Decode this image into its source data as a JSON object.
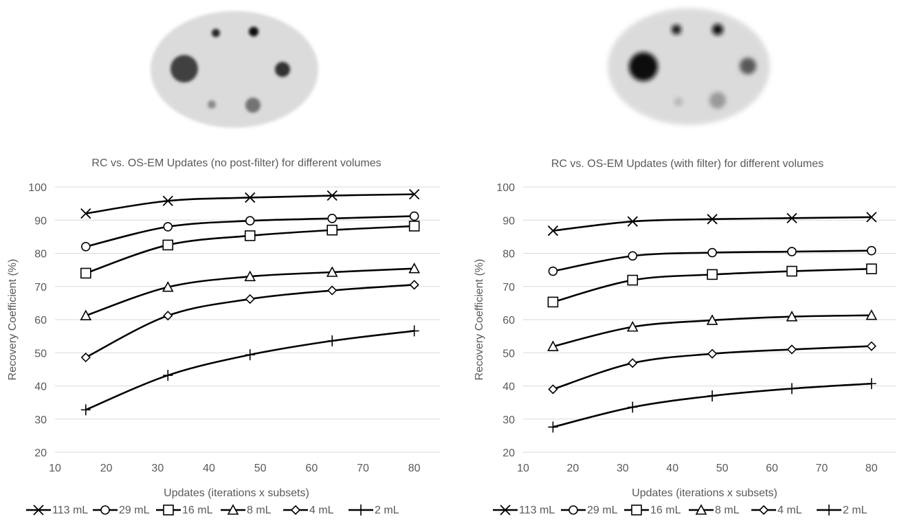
{
  "chart_data": [
    {
      "type": "line",
      "title": "RC vs. OS-EM Updates (no post-filter) for different volumes",
      "xlabel": "Updates (iterations x subsets)",
      "ylabel": "Recovery Coefficient  (%)",
      "xlim": [
        10,
        85
      ],
      "ylim": [
        20,
        100
      ],
      "xticks": [
        10,
        20,
        30,
        40,
        50,
        60,
        70,
        80
      ],
      "yticks": [
        20,
        30,
        40,
        50,
        60,
        70,
        80,
        90,
        100
      ],
      "grid": true,
      "legend": "bottom",
      "x": [
        16,
        32,
        48,
        64,
        80
      ],
      "series": [
        {
          "name": "113 mL",
          "marker": "x",
          "values": [
            92.0,
            95.8,
            96.8,
            97.4,
            97.8
          ]
        },
        {
          "name": "29 mL",
          "marker": "circle",
          "values": [
            82.0,
            88.0,
            89.8,
            90.5,
            91.2
          ]
        },
        {
          "name": "16 mL",
          "marker": "square",
          "values": [
            74.0,
            82.5,
            85.3,
            87.0,
            88.2
          ]
        },
        {
          "name": "8 mL",
          "marker": "triangle",
          "values": [
            61.2,
            69.8,
            73.0,
            74.3,
            75.4
          ]
        },
        {
          "name": "4 mL",
          "marker": "diamond",
          "values": [
            48.6,
            61.2,
            66.2,
            68.8,
            70.5
          ]
        },
        {
          "name": "2 mL",
          "marker": "plus",
          "values": [
            32.8,
            43.2,
            49.4,
            53.6,
            56.6
          ]
        }
      ]
    },
    {
      "type": "line",
      "title": "RC vs. OS-EM Updates (with filter) for different volumes",
      "xlabel": "Updates (iterations x subsets)",
      "ylabel": "Recovery Coefficient  (%)",
      "xlim": [
        10,
        85
      ],
      "ylim": [
        20,
        100
      ],
      "xticks": [
        10,
        20,
        30,
        40,
        50,
        60,
        70,
        80
      ],
      "yticks": [
        20,
        30,
        40,
        50,
        60,
        70,
        80,
        90,
        100
      ],
      "grid": true,
      "legend": "bottom",
      "x": [
        16,
        32,
        48,
        64,
        80
      ],
      "series": [
        {
          "name": "113 mL",
          "marker": "x",
          "values": [
            86.8,
            89.6,
            90.3,
            90.6,
            90.9
          ]
        },
        {
          "name": "29 mL",
          "marker": "circle",
          "values": [
            74.6,
            79.2,
            80.2,
            80.5,
            80.8
          ]
        },
        {
          "name": "16 mL",
          "marker": "square",
          "values": [
            65.3,
            71.9,
            73.6,
            74.6,
            75.3
          ]
        },
        {
          "name": "8 mL",
          "marker": "triangle",
          "values": [
            51.9,
            57.8,
            59.8,
            60.9,
            61.3
          ]
        },
        {
          "name": "4 mL",
          "marker": "diamond",
          "values": [
            39.0,
            46.9,
            49.7,
            51.0,
            52.0
          ]
        },
        {
          "name": "2 mL",
          "marker": "plus",
          "values": [
            27.6,
            33.6,
            37.0,
            39.2,
            40.7
          ]
        }
      ]
    }
  ],
  "phantoms": [
    {
      "spheres": [
        {
          "name": "113 mL",
          "intensity": 0.75
        },
        {
          "name": "29 mL",
          "intensity": 0.85
        },
        {
          "name": "16 mL",
          "intensity": 0.95
        },
        {
          "name": "8 mL",
          "intensity": 0.8
        },
        {
          "name": "4 mL",
          "intensity": 0.55
        },
        {
          "name": "2 mL",
          "intensity": 0.45
        }
      ]
    },
    {
      "spheres": [
        {
          "name": "113 mL",
          "intensity": 0.95
        },
        {
          "name": "29 mL",
          "intensity": 0.9
        },
        {
          "name": "16 mL",
          "intensity": 0.95
        },
        {
          "name": "8 mL",
          "intensity": 0.65
        },
        {
          "name": "4 mL",
          "intensity": 0.4
        },
        {
          "name": "2 mL",
          "intensity": 0.3
        }
      ]
    }
  ],
  "colors": {
    "line": "#000000",
    "grid": "#d9d9d9",
    "text": "#595959",
    "background": "#bfbfbf"
  }
}
